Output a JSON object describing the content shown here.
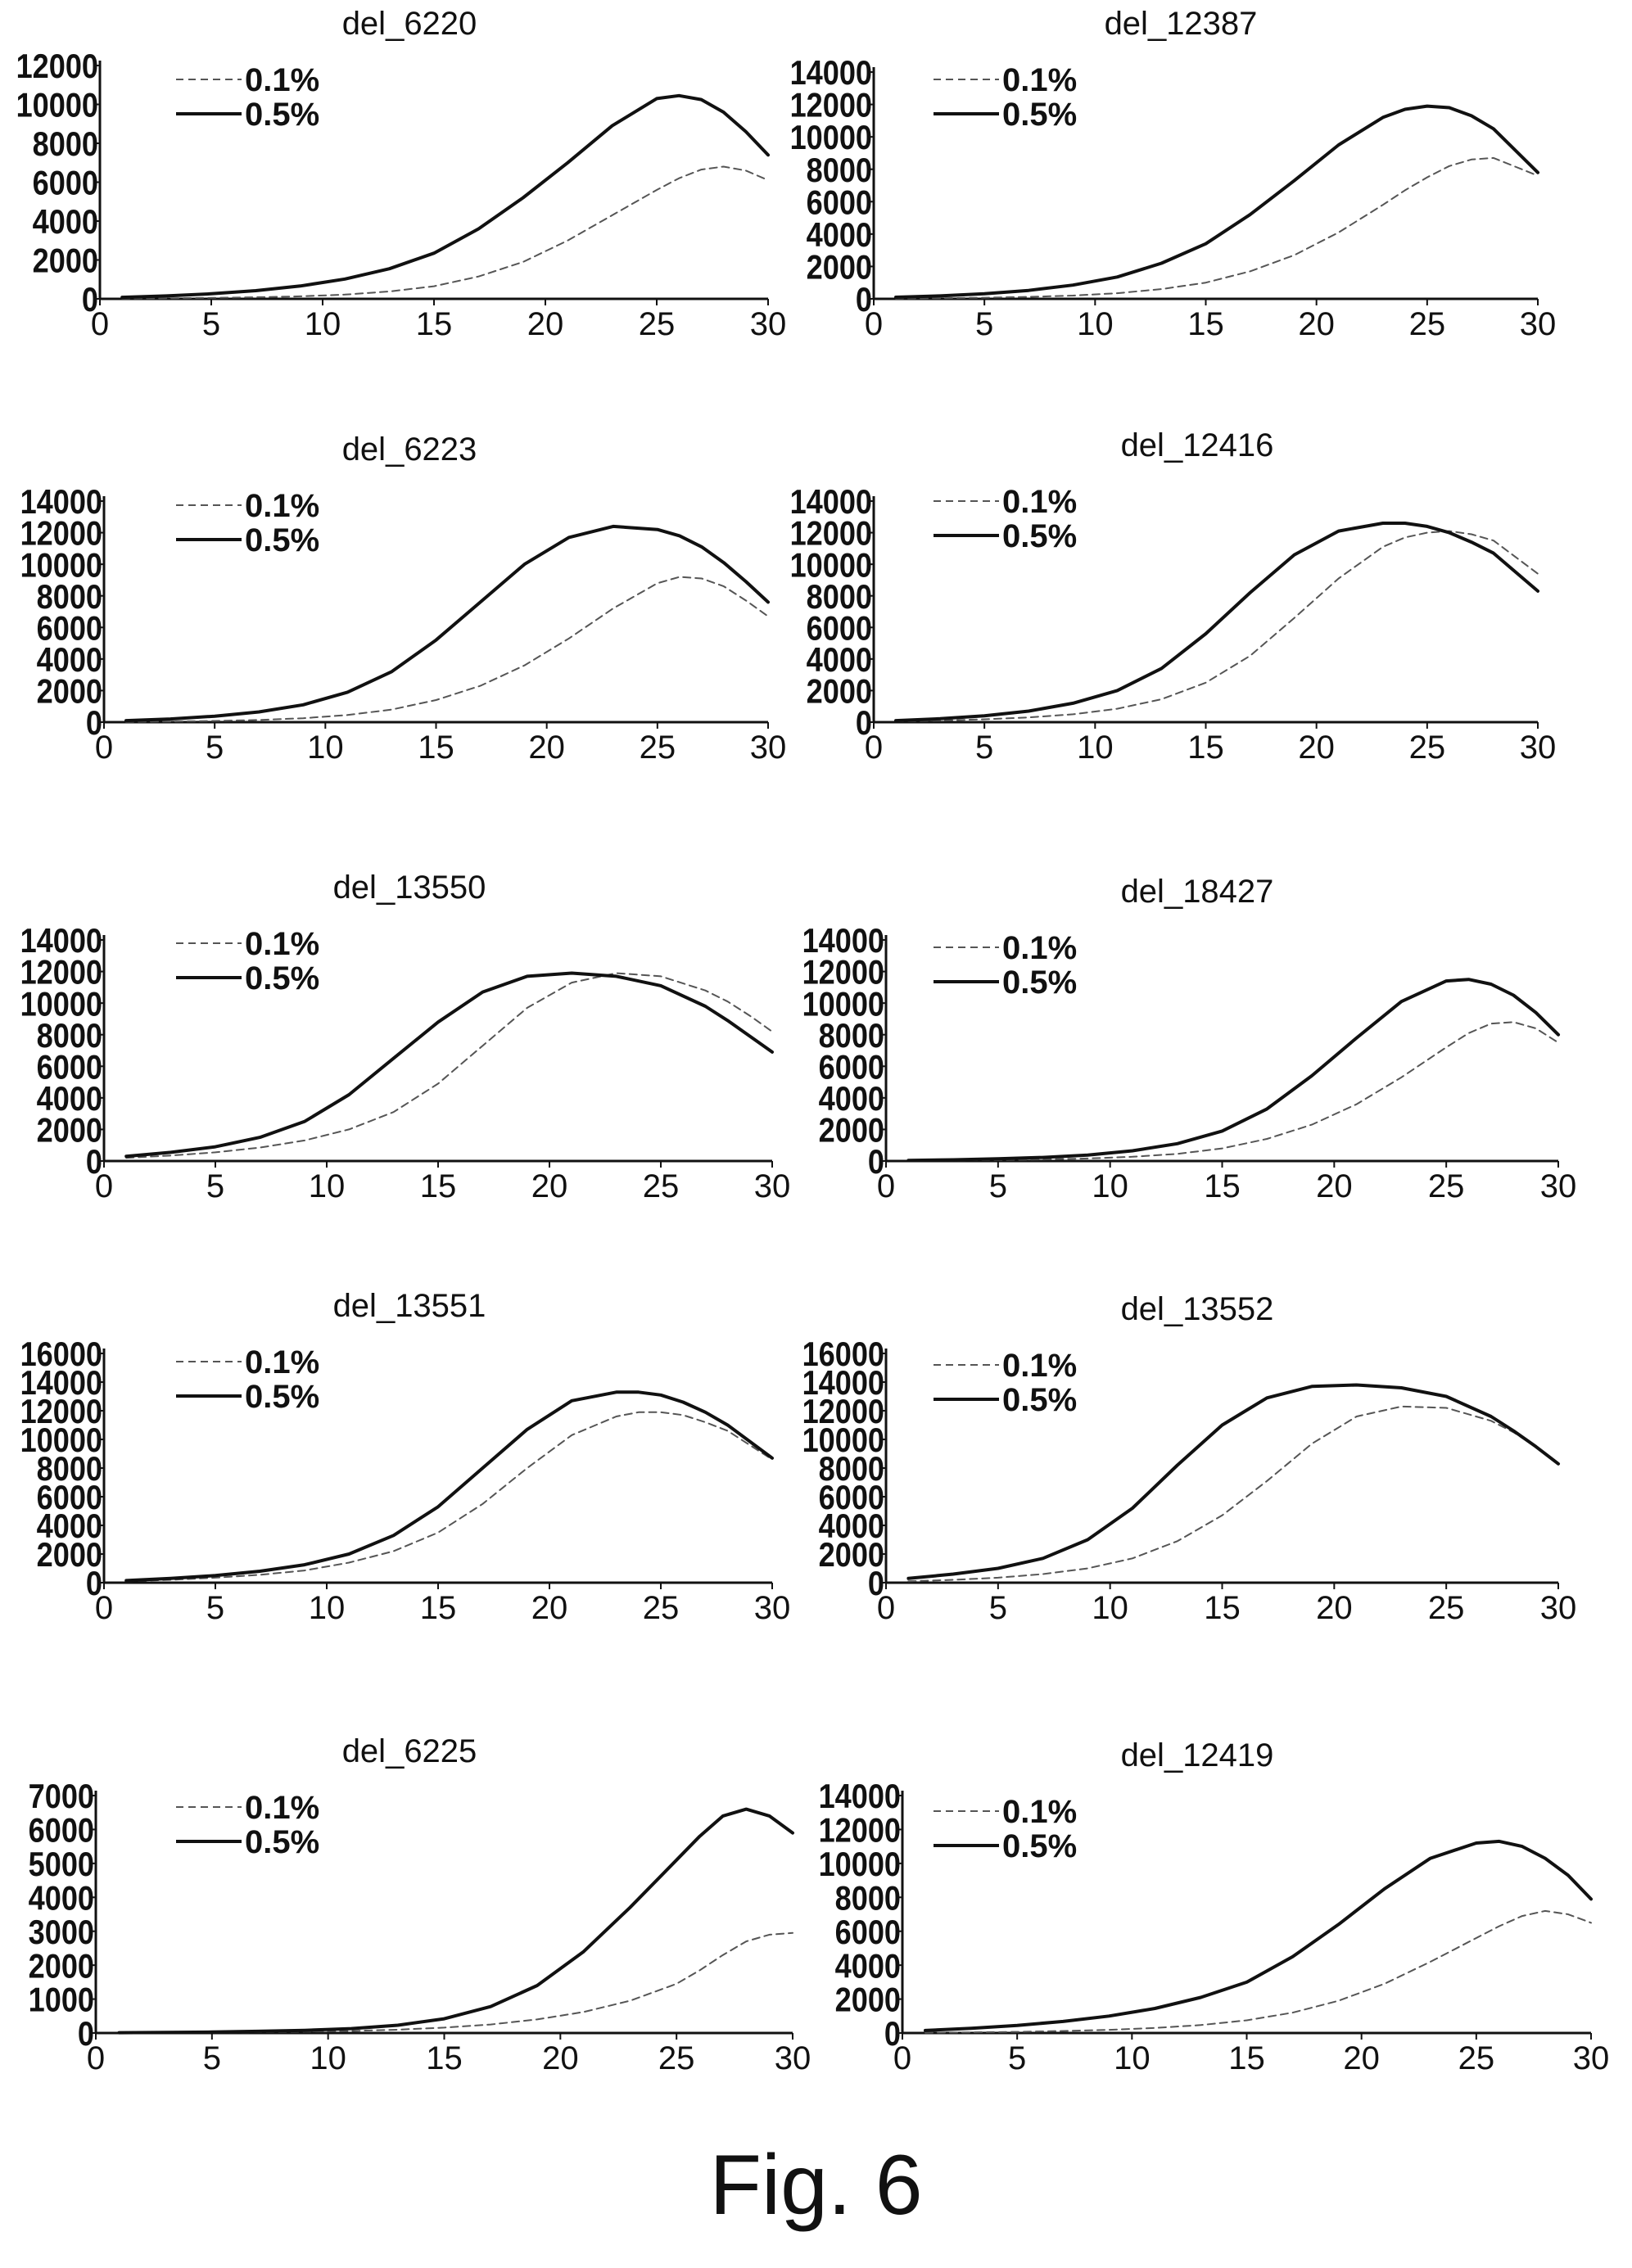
{
  "caption": "Fig. 6",
  "chart_data": [
    {
      "type": "line",
      "title": "del_6220",
      "x": [
        1,
        3,
        5,
        7,
        9,
        11,
        13,
        15,
        17,
        19,
        21,
        23,
        25,
        26,
        27,
        28,
        29,
        30
      ],
      "series": [
        {
          "name": "0.1%",
          "style": "dashed",
          "values": [
            20,
            30,
            50,
            80,
            130,
            220,
            380,
            650,
            1150,
            1900,
            3000,
            4300,
            5600,
            6200,
            6650,
            6800,
            6600,
            6100
          ]
        },
        {
          "name": "0.5%",
          "style": "solid",
          "values": [
            80,
            150,
            260,
            420,
            660,
            1020,
            1550,
            2350,
            3600,
            5200,
            7000,
            8900,
            10300,
            10450,
            10250,
            9600,
            8600,
            7400
          ]
        }
      ],
      "ylim": [
        0,
        12000
      ],
      "yticks": [
        0,
        2000,
        4000,
        6000,
        8000,
        10000,
        12000
      ],
      "xlim": [
        0,
        30
      ],
      "xticks": [
        0,
        5,
        10,
        15,
        20,
        25,
        30
      ],
      "legend": "top-left"
    },
    {
      "type": "line",
      "title": "del_12387",
      "x": [
        1,
        3,
        5,
        7,
        9,
        11,
        13,
        15,
        17,
        19,
        21,
        23,
        24,
        25,
        26,
        27,
        28,
        30
      ],
      "series": [
        {
          "name": "0.1%",
          "style": "dashed",
          "values": [
            20,
            40,
            70,
            120,
            200,
            350,
            600,
            1000,
            1700,
            2700,
            4100,
            5800,
            6700,
            7500,
            8200,
            8600,
            8700,
            7600
          ]
        },
        {
          "name": "0.5%",
          "style": "solid",
          "values": [
            100,
            180,
            320,
            520,
            850,
            1350,
            2200,
            3400,
            5200,
            7300,
            9500,
            11200,
            11700,
            11900,
            11800,
            11300,
            10500,
            7800
          ]
        }
      ],
      "ylim": [
        0,
        14000
      ],
      "yticks": [
        0,
        2000,
        4000,
        6000,
        8000,
        10000,
        12000,
        14000
      ],
      "xlim": [
        0,
        30
      ],
      "xticks": [
        0,
        5,
        10,
        15,
        20,
        25,
        30
      ],
      "legend": "top-left"
    },
    {
      "type": "line",
      "title": "del_6223",
      "x": [
        1,
        3,
        5,
        7,
        9,
        11,
        13,
        15,
        17,
        19,
        21,
        23,
        25,
        26,
        27,
        28,
        29,
        30
      ],
      "series": [
        {
          "name": "0.1%",
          "style": "dashed",
          "values": [
            20,
            40,
            80,
            140,
            250,
            450,
            800,
            1400,
            2300,
            3600,
            5300,
            7200,
            8800,
            9200,
            9100,
            8600,
            7700,
            6700
          ]
        },
        {
          "name": "0.5%",
          "style": "solid",
          "values": [
            100,
            200,
            380,
            650,
            1100,
            1900,
            3200,
            5200,
            7600,
            10000,
            11700,
            12400,
            12200,
            11800,
            11100,
            10100,
            8900,
            7600
          ]
        }
      ],
      "ylim": [
        0,
        14000
      ],
      "yticks": [
        0,
        2000,
        4000,
        6000,
        8000,
        10000,
        12000,
        14000
      ],
      "xlim": [
        0,
        30
      ],
      "xticks": [
        0,
        5,
        10,
        15,
        20,
        25,
        30
      ],
      "legend": "top-left"
    },
    {
      "type": "line",
      "title": "del_12416",
      "x": [
        1,
        3,
        5,
        7,
        9,
        11,
        13,
        15,
        17,
        19,
        21,
        23,
        24,
        25,
        26,
        27,
        28,
        30
      ],
      "series": [
        {
          "name": "0.1%",
          "style": "dashed",
          "values": [
            50,
            100,
            180,
            300,
            500,
            850,
            1450,
            2500,
            4200,
            6600,
            9100,
            11100,
            11700,
            12000,
            12100,
            11900,
            11500,
            9400
          ]
        },
        {
          "name": "0.5%",
          "style": "solid",
          "values": [
            100,
            220,
            400,
            700,
            1200,
            2000,
            3400,
            5600,
            8200,
            10600,
            12100,
            12600,
            12600,
            12400,
            12000,
            11400,
            10700,
            8300
          ]
        }
      ],
      "ylim": [
        0,
        14000
      ],
      "yticks": [
        0,
        2000,
        4000,
        6000,
        8000,
        10000,
        12000,
        14000
      ],
      "xlim": [
        0,
        30
      ],
      "xticks": [
        0,
        5,
        10,
        15,
        20,
        25,
        30
      ],
      "legend": "top-left"
    },
    {
      "type": "line",
      "title": "del_13550",
      "x": [
        1,
        3,
        5,
        7,
        9,
        11,
        13,
        15,
        17,
        19,
        21,
        23,
        25,
        27,
        28,
        29,
        30
      ],
      "series": [
        {
          "name": "0.1%",
          "style": "dashed",
          "values": [
            200,
            350,
            550,
            850,
            1300,
            2000,
            3100,
            4900,
            7300,
            9700,
            11300,
            11900,
            11700,
            10800,
            10100,
            9200,
            8200
          ]
        },
        {
          "name": "0.5%",
          "style": "solid",
          "values": [
            300,
            550,
            900,
            1500,
            2500,
            4200,
            6500,
            8800,
            10700,
            11700,
            11900,
            11700,
            11100,
            9800,
            8900,
            7900,
            6900
          ]
        }
      ],
      "ylim": [
        0,
        14000
      ],
      "yticks": [
        0,
        2000,
        4000,
        6000,
        8000,
        10000,
        12000,
        14000
      ],
      "xlim": [
        0,
        30
      ],
      "xticks": [
        0,
        5,
        10,
        15,
        20,
        25,
        30
      ],
      "legend": "top-left"
    },
    {
      "type": "line",
      "title": "del_18427",
      "x": [
        1,
        3,
        5,
        7,
        9,
        11,
        13,
        15,
        17,
        19,
        21,
        23,
        25,
        26,
        27,
        28,
        29,
        30
      ],
      "series": [
        {
          "name": "0.1%",
          "style": "dashed",
          "values": [
            20,
            40,
            60,
            100,
            160,
            270,
            450,
            800,
            1400,
            2300,
            3600,
            5300,
            7200,
            8100,
            8700,
            8800,
            8400,
            7500
          ]
        },
        {
          "name": "0.5%",
          "style": "solid",
          "values": [
            40,
            80,
            140,
            230,
            380,
            650,
            1100,
            1900,
            3300,
            5400,
            7800,
            10100,
            11400,
            11500,
            11200,
            10500,
            9400,
            8000
          ]
        }
      ],
      "ylim": [
        0,
        14000
      ],
      "yticks": [
        0,
        2000,
        4000,
        6000,
        8000,
        10000,
        12000,
        14000
      ],
      "xlim": [
        0,
        30
      ],
      "xticks": [
        0,
        5,
        10,
        15,
        20,
        25,
        30
      ],
      "legend": "top-left"
    },
    {
      "type": "line",
      "title": "del_13551",
      "x": [
        1,
        3,
        5,
        7,
        9,
        11,
        13,
        15,
        17,
        19,
        21,
        23,
        24,
        25,
        26,
        27,
        28,
        30
      ],
      "series": [
        {
          "name": "0.1%",
          "style": "dashed",
          "values": [
            100,
            200,
            350,
            550,
            850,
            1400,
            2200,
            3500,
            5500,
            8000,
            10300,
            11600,
            11900,
            11900,
            11700,
            11200,
            10600,
            8600
          ]
        },
        {
          "name": "0.5%",
          "style": "solid",
          "values": [
            150,
            300,
            500,
            800,
            1250,
            2000,
            3300,
            5300,
            8000,
            10700,
            12700,
            13300,
            13300,
            13100,
            12600,
            11900,
            11000,
            8700
          ]
        }
      ],
      "ylim": [
        0,
        16000
      ],
      "yticks": [
        0,
        2000,
        4000,
        6000,
        8000,
        10000,
        12000,
        14000,
        16000
      ],
      "xlim": [
        0,
        30
      ],
      "xticks": [
        0,
        5,
        10,
        15,
        20,
        25,
        30
      ],
      "legend": "top-left"
    },
    {
      "type": "line",
      "title": "del_13552",
      "x": [
        1,
        3,
        5,
        7,
        9,
        11,
        13,
        15,
        17,
        19,
        21,
        23,
        25,
        27,
        28,
        29,
        30
      ],
      "series": [
        {
          "name": "0.1%",
          "style": "dashed",
          "values": [
            100,
            200,
            350,
            600,
            1000,
            1700,
            2900,
            4700,
            7100,
            9700,
            11600,
            12300,
            12200,
            11300,
            10500,
            9500,
            8300
          ]
        },
        {
          "name": "0.5%",
          "style": "solid",
          "values": [
            300,
            600,
            1000,
            1700,
            3000,
            5200,
            8200,
            11000,
            12900,
            13700,
            13800,
            13600,
            13000,
            11600,
            10600,
            9500,
            8300
          ]
        }
      ],
      "ylim": [
        0,
        16000
      ],
      "yticks": [
        0,
        2000,
        4000,
        6000,
        8000,
        10000,
        12000,
        14000,
        16000
      ],
      "xlim": [
        0,
        30
      ],
      "xticks": [
        0,
        5,
        10,
        15,
        20,
        25,
        30
      ],
      "legend": "top-left"
    },
    {
      "type": "line",
      "title": "del_6225",
      "x": [
        1,
        3,
        5,
        7,
        9,
        11,
        13,
        15,
        17,
        19,
        21,
        23,
        25,
        26,
        27,
        28,
        29,
        30
      ],
      "series": [
        {
          "name": "0.1%",
          "style": "dashed",
          "values": [
            5,
            10,
            15,
            25,
            40,
            60,
            100,
            160,
            250,
            400,
            620,
            950,
            1450,
            1850,
            2300,
            2700,
            2900,
            2950
          ]
        },
        {
          "name": "0.5%",
          "style": "solid",
          "values": [
            10,
            20,
            30,
            50,
            80,
            130,
            230,
            420,
            780,
            1400,
            2400,
            3700,
            5100,
            5800,
            6400,
            6600,
            6400,
            5900
          ]
        }
      ],
      "ylim": [
        0,
        7000
      ],
      "yticks": [
        0,
        1000,
        2000,
        3000,
        4000,
        5000,
        6000,
        7000
      ],
      "xlim": [
        0,
        30
      ],
      "xticks": [
        0,
        5,
        10,
        15,
        20,
        25,
        30
      ],
      "legend": "top-left"
    },
    {
      "type": "line",
      "title": "del_12419",
      "x": [
        1,
        3,
        5,
        7,
        9,
        11,
        13,
        15,
        17,
        19,
        21,
        23,
        25,
        26,
        27,
        28,
        29,
        30
      ],
      "series": [
        {
          "name": "0.1%",
          "style": "dashed",
          "values": [
            20,
            40,
            70,
            120,
            190,
            300,
            470,
            750,
            1200,
            1900,
            2900,
            4200,
            5600,
            6300,
            6900,
            7200,
            7000,
            6500
          ]
        },
        {
          "name": "0.5%",
          "style": "solid",
          "values": [
            150,
            280,
            450,
            680,
            1000,
            1450,
            2100,
            3000,
            4500,
            6400,
            8500,
            10300,
            11200,
            11300,
            11000,
            10300,
            9300,
            7900
          ]
        }
      ],
      "ylim": [
        0,
        14000
      ],
      "yticks": [
        0,
        2000,
        4000,
        6000,
        8000,
        10000,
        12000,
        14000
      ],
      "xlim": [
        0,
        30
      ],
      "xticks": [
        0,
        5,
        10,
        15,
        20,
        25,
        30
      ],
      "legend": "top-left"
    }
  ]
}
